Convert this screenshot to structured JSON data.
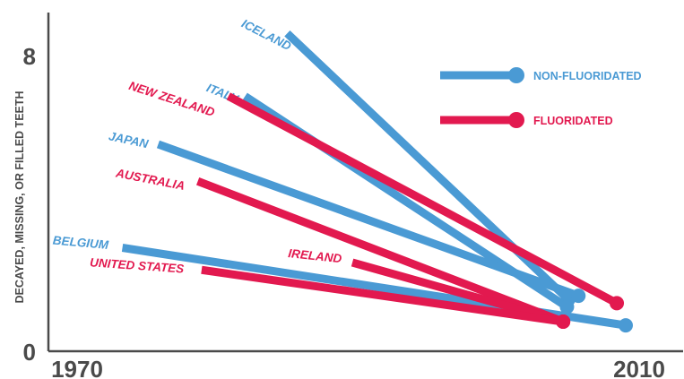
{
  "colors": {
    "non_fluoridated": "#4a9ad4",
    "fluoridated": "#e2194f",
    "axis": "#4a4a4a"
  },
  "chart_data": {
    "type": "line",
    "title": "",
    "ylabel": "DECAYED, MISSING, OR FILLED TEETH",
    "xlabel": "",
    "x_ticks": [
      "1970",
      "2010"
    ],
    "y_ticks": [
      "0",
      "8"
    ],
    "xlim": [
      1970,
      2010
    ],
    "ylim": [
      0,
      8
    ],
    "legend": {
      "placement": "top-right",
      "entries": [
        {
          "key": "non_fluoridated",
          "label": "NON-FLUORIDATED"
        },
        {
          "key": "fluoridated",
          "label": "FLUORIDATED"
        }
      ]
    },
    "series": [
      {
        "name": "ICELAND",
        "group": "non_fluoridated",
        "label_dx": -52,
        "label_dy": -8,
        "label_rot": 27,
        "points": [
          {
            "x": 1983.5,
            "y": 8.6
          },
          {
            "x": 2005.5,
            "y": 1.4
          }
        ]
      },
      {
        "name": "ITALY",
        "group": "non_fluoridated",
        "label_dx": -44,
        "label_dy": -6,
        "label_rot": 22,
        "points": [
          {
            "x": 1980.2,
            "y": 6.9
          },
          {
            "x": 2005.4,
            "y": 1.2
          }
        ]
      },
      {
        "name": "JAPAN",
        "group": "non_fluoridated",
        "label_dx": -56,
        "label_dy": -5,
        "label_rot": 12,
        "points": [
          {
            "x": 1973.4,
            "y": 5.6
          },
          {
            "x": 2006.3,
            "y": 1.5
          }
        ]
      },
      {
        "name": "BELGIUM",
        "group": "non_fluoridated",
        "label_dx": -78,
        "label_dy": -4,
        "label_rot": 5,
        "points": [
          {
            "x": 1970.6,
            "y": 2.8
          },
          {
            "x": 2010.0,
            "y": 0.7
          }
        ]
      },
      {
        "name": "NEW ZEALAND",
        "group": "fluoridated",
        "label_dx": -112,
        "label_dy": -8,
        "label_rot": 18,
        "points": [
          {
            "x": 1978.9,
            "y": 6.9
          },
          {
            "x": 2009.3,
            "y": 1.3
          }
        ]
      },
      {
        "name": "AUSTRALIA",
        "group": "fluoridated",
        "label_dx": -92,
        "label_dy": -5,
        "label_rot": 11,
        "points": [
          {
            "x": 1976.5,
            "y": 4.6
          },
          {
            "x": 2005.1,
            "y": 0.8
          }
        ]
      },
      {
        "name": "IRELAND",
        "group": "fluoridated",
        "label_dx": -72,
        "label_dy": -6,
        "label_rot": 6,
        "points": [
          {
            "x": 1988.6,
            "y": 2.4
          },
          {
            "x": 2005.1,
            "y": 0.8
          }
        ]
      },
      {
        "name": "UNITED STATES",
        "group": "fluoridated",
        "label_dx": -125,
        "label_dy": -4,
        "label_rot": 4,
        "points": [
          {
            "x": 1976.8,
            "y": 2.2
          },
          {
            "x": 2005.1,
            "y": 0.8
          }
        ]
      }
    ]
  }
}
